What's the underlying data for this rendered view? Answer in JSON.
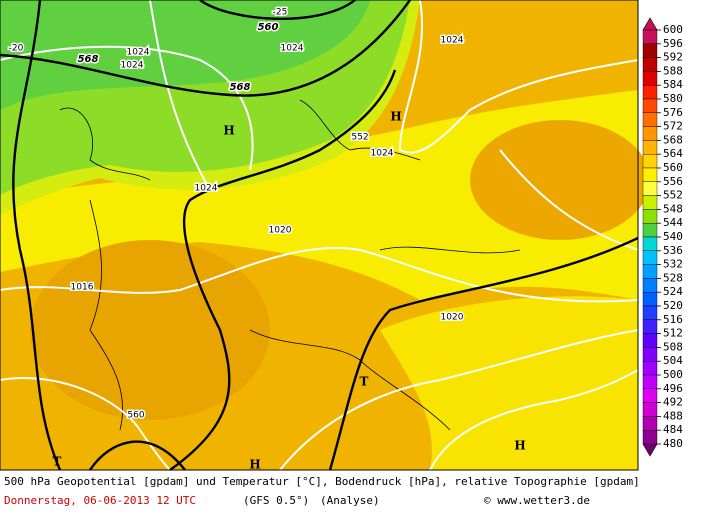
{
  "map": {
    "labels": [
      "-25",
      "560",
      "-20",
      "1024",
      "1024",
      "1024",
      "1024",
      "568",
      "568",
      "H",
      "H",
      "552",
      "1024",
      "1024",
      "1020",
      "1016",
      "1020",
      "T",
      "T",
      "H",
      "H",
      "560"
    ]
  },
  "legend": {
    "levels": [
      600,
      596,
      592,
      588,
      584,
      580,
      576,
      572,
      568,
      564,
      560,
      556,
      552,
      548,
      544,
      540,
      536,
      532,
      528,
      524,
      520,
      516,
      512,
      508,
      504,
      500,
      496,
      492,
      488,
      484,
      480
    ],
    "colors": [
      "#c8105a",
      "#a00000",
      "#c00000",
      "#e00000",
      "#ff2000",
      "#ff4a00",
      "#ff7000",
      "#ff9600",
      "#ffb400",
      "#ffd200",
      "#fff000",
      "#ffff40",
      "#c8f000",
      "#8ce000",
      "#50d040",
      "#00d8d8",
      "#00c0ff",
      "#00a0ff",
      "#0080ff",
      "#0060ff",
      "#2040ff",
      "#4020ff",
      "#6000ff",
      "#8000ff",
      "#a000ff",
      "#c000ff",
      "#e000f0",
      "#d000d0",
      "#b000b0",
      "#900090",
      "#700070"
    ]
  },
  "caption": {
    "title": "500 hPa Geopotential [gpdam] und Temperatur [°C], Bodendruck [hPa], relative Topographie [gpdam]",
    "date": "Donnerstag, 06-06-2013  12 UTC",
    "model": "(GFS 0.5°)",
    "run": "(Analyse)",
    "credit": "© www.wetter3.de"
  }
}
